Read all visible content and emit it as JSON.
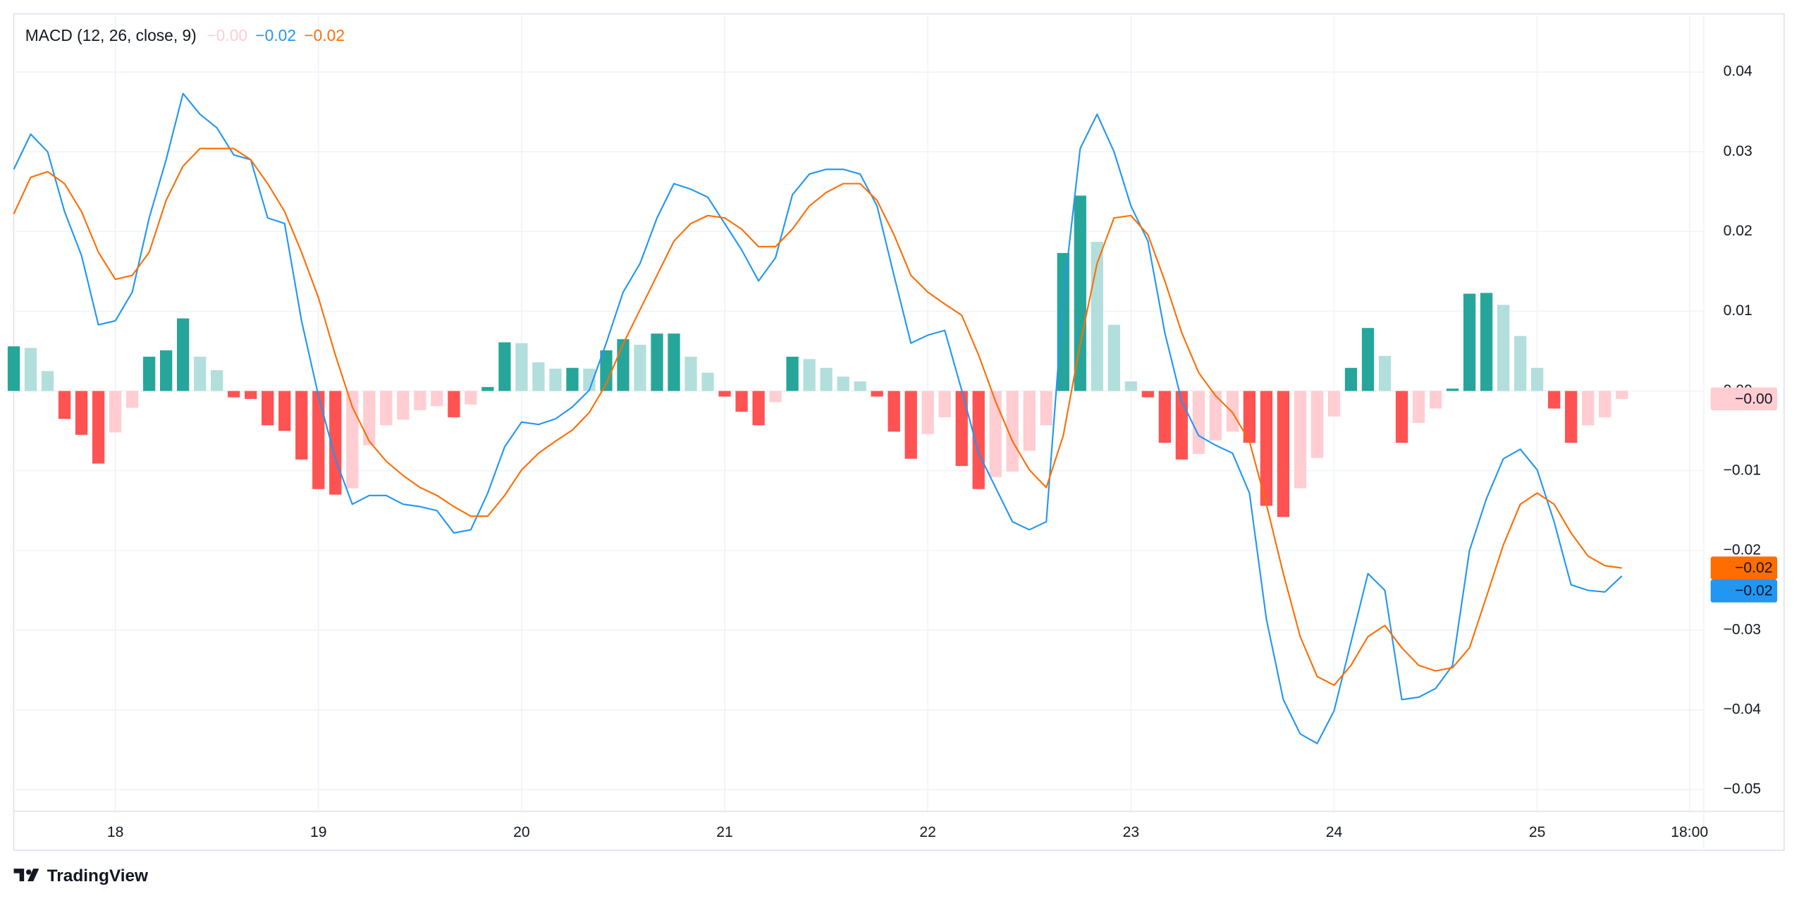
{
  "chart_data": {
    "type": "macd",
    "title": "MACD (12, 26, close, 9)",
    "x": [
      17.5,
      17.5833,
      17.6667,
      17.75,
      17.8333,
      17.9167,
      18,
      18.0833,
      18.1667,
      18.25,
      18.3333,
      18.4167,
      18.5,
      18.5833,
      18.6667,
      18.75,
      18.8333,
      18.9167,
      19,
      19.0833,
      19.1667,
      19.25,
      19.3333,
      19.4167,
      19.5,
      19.5833,
      19.6667,
      19.75,
      19.8333,
      19.9167,
      20,
      20.0833,
      20.1667,
      20.25,
      20.3333,
      20.4167,
      20.5,
      20.5833,
      20.6667,
      20.75,
      20.8333,
      20.9167,
      21,
      21.0833,
      21.1667,
      21.25,
      21.3333,
      21.4167,
      21.5,
      21.5833,
      21.6667,
      21.75,
      21.8333,
      21.9167,
      22,
      22.0833,
      22.1667,
      22.25,
      22.3333,
      22.4167,
      22.5,
      22.5833,
      22.6667,
      22.75,
      22.8333,
      22.9167,
      23,
      23.0833,
      23.1667,
      23.25,
      23.3333,
      23.4167,
      23.5,
      23.5833,
      23.6667,
      23.75,
      23.8333,
      23.9167,
      24,
      24.0833,
      24.1667,
      24.25,
      24.3333,
      24.4167,
      24.5,
      24.5833,
      24.6667,
      24.75,
      24.8333,
      24.9167,
      25,
      25.0833,
      25.1667,
      25.25,
      25.3333,
      25.4167
    ],
    "xlim": [
      17.5,
      25.82
    ],
    "xticks": [
      18,
      19,
      20,
      21,
      22,
      23,
      24,
      25,
      {
        "value": 25.75,
        "label": "18:00"
      }
    ],
    "ylim": [
      -0.0527,
      0.0473
    ],
    "yticks": [
      0.04,
      0.03,
      0.02,
      0.01,
      {
        "value": 0,
        "label": "0.00"
      },
      {
        "value": -0.01,
        "label": "−0.01"
      },
      {
        "value": -0.02,
        "label": "−0.02"
      },
      {
        "value": -0.03,
        "label": "−0.03"
      },
      {
        "value": -0.04,
        "label": "−0.04"
      },
      {
        "value": -0.05,
        "label": "−0.05"
      }
    ],
    "grid": true,
    "series": [
      {
        "type": "bar",
        "colors": {
          "grow_above": "#26a69a",
          "fall_above": "#b2dfdb",
          "rise_below": "#ffcdd2",
          "fall_below": "#ff5252"
        },
        "values": [
          0.0056,
          0.0054,
          0.0025,
          -0.0035,
          -0.0055,
          -0.0091,
          -0.0052,
          -0.0021,
          0.0043,
          0.0051,
          0.0091,
          0.0043,
          0.0026,
          -0.0008,
          -0.001,
          -0.0043,
          -0.005,
          -0.0086,
          -0.0123,
          -0.013,
          -0.0122,
          -0.0068,
          -0.0043,
          -0.0036,
          -0.0024,
          -0.0019,
          -0.0033,
          -0.0017,
          0.0005,
          0.0061,
          0.006,
          0.0036,
          0.0028,
          0.0029,
          0.0028,
          0.0051,
          0.0065,
          0.0058,
          0.0072,
          0.0072,
          0.0043,
          0.0023,
          -0.0007,
          -0.0026,
          -0.0043,
          -0.0014,
          0.0043,
          0.004,
          0.0029,
          0.0018,
          0.0012,
          -0.0007,
          -0.0051,
          -0.0085,
          -0.0054,
          -0.0033,
          -0.0094,
          -0.0123,
          -0.0108,
          -0.0101,
          -0.0075,
          -0.0043,
          0.0173,
          0.0245,
          0.0187,
          0.0083,
          0.0012,
          -0.0008,
          -0.0065,
          -0.0086,
          -0.0079,
          -0.0062,
          -0.0051,
          -0.0065,
          -0.0144,
          -0.0158,
          -0.0122,
          -0.0084,
          -0.0032,
          0.0029,
          0.0079,
          0.0044,
          -0.0065,
          -0.004,
          -0.0022,
          0.0003,
          0.0122,
          0.0123,
          0.0108,
          0.0069,
          0.0029,
          -0.0022,
          -0.0065,
          -0.0043,
          -0.0033,
          -0.001
        ],
        "last_label": "−0.00"
      },
      {
        "type": "line",
        "color": "#2196f3",
        "values": [
          0.0278,
          0.0322,
          0.03,
          0.0225,
          0.017,
          0.0083,
          0.0088,
          0.0124,
          0.0217,
          0.029,
          0.0373,
          0.0347,
          0.033,
          0.0296,
          0.029,
          0.0217,
          0.021,
          0.0088,
          -0.0006,
          -0.0085,
          -0.0142,
          -0.0131,
          -0.0131,
          -0.0142,
          -0.0145,
          -0.015,
          -0.0178,
          -0.0174,
          -0.0128,
          -0.007,
          -0.0039,
          -0.0042,
          -0.0035,
          -0.002,
          0.0001,
          0.006,
          0.0124,
          0.016,
          0.0217,
          0.026,
          0.0253,
          0.0243,
          0.021,
          0.0177,
          0.0138,
          0.0167,
          0.0246,
          0.0272,
          0.0278,
          0.0278,
          0.0272,
          0.0232,
          0.0145,
          0.006,
          0.007,
          0.0076,
          0.0001,
          -0.0078,
          -0.0121,
          -0.0164,
          -0.0174,
          -0.0164,
          0.0117,
          0.0304,
          0.0347,
          0.03,
          0.0232,
          0.0188,
          0.0073,
          -0.0013,
          -0.0056,
          -0.0068,
          -0.0078,
          -0.0128,
          -0.0286,
          -0.0387,
          -0.043,
          -0.0442,
          -0.0401,
          -0.0315,
          -0.0229,
          -0.025,
          -0.0387,
          -0.0384,
          -0.0373,
          -0.0344,
          -0.02,
          -0.0135,
          -0.0085,
          -0.0073,
          -0.0099,
          -0.0164,
          -0.0243,
          -0.025,
          -0.0252,
          -0.0232
        ],
        "last_label": "−0.02"
      },
      {
        "type": "line",
        "color": "#ff6d00",
        "values": [
          0.0222,
          0.0268,
          0.0275,
          0.026,
          0.0225,
          0.0174,
          0.014,
          0.0145,
          0.0174,
          0.0239,
          0.0282,
          0.0304,
          0.0304,
          0.0304,
          0.029,
          0.026,
          0.0225,
          0.0174,
          0.0117,
          0.0045,
          -0.002,
          -0.0063,
          -0.0088,
          -0.0106,
          -0.0121,
          -0.0131,
          -0.0145,
          -0.0157,
          -0.0157,
          -0.0131,
          -0.0099,
          -0.0078,
          -0.0063,
          -0.0049,
          -0.0027,
          0.0009,
          0.0059,
          0.0102,
          0.0145,
          0.0188,
          0.021,
          0.022,
          0.0217,
          0.0203,
          0.0181,
          0.0181,
          0.0203,
          0.0232,
          0.0249,
          0.026,
          0.026,
          0.0239,
          0.0196,
          0.0145,
          0.0124,
          0.0109,
          0.0095,
          0.0045,
          -0.0013,
          -0.0063,
          -0.0099,
          -0.0121,
          -0.0056,
          0.0059,
          0.016,
          0.0217,
          0.022,
          0.0196,
          0.0138,
          0.0073,
          0.0023,
          -0.0006,
          -0.0027,
          -0.0063,
          -0.0142,
          -0.0229,
          -0.0308,
          -0.0358,
          -0.0369,
          -0.0344,
          -0.0308,
          -0.0294,
          -0.0322,
          -0.0344,
          -0.0351,
          -0.0347,
          -0.0322,
          -0.0258,
          -0.0193,
          -0.0142,
          -0.0128,
          -0.0142,
          -0.0178,
          -0.0207,
          -0.0219,
          -0.0222
        ],
        "last_label": "−0.02"
      }
    ]
  },
  "branding": "TradingView"
}
